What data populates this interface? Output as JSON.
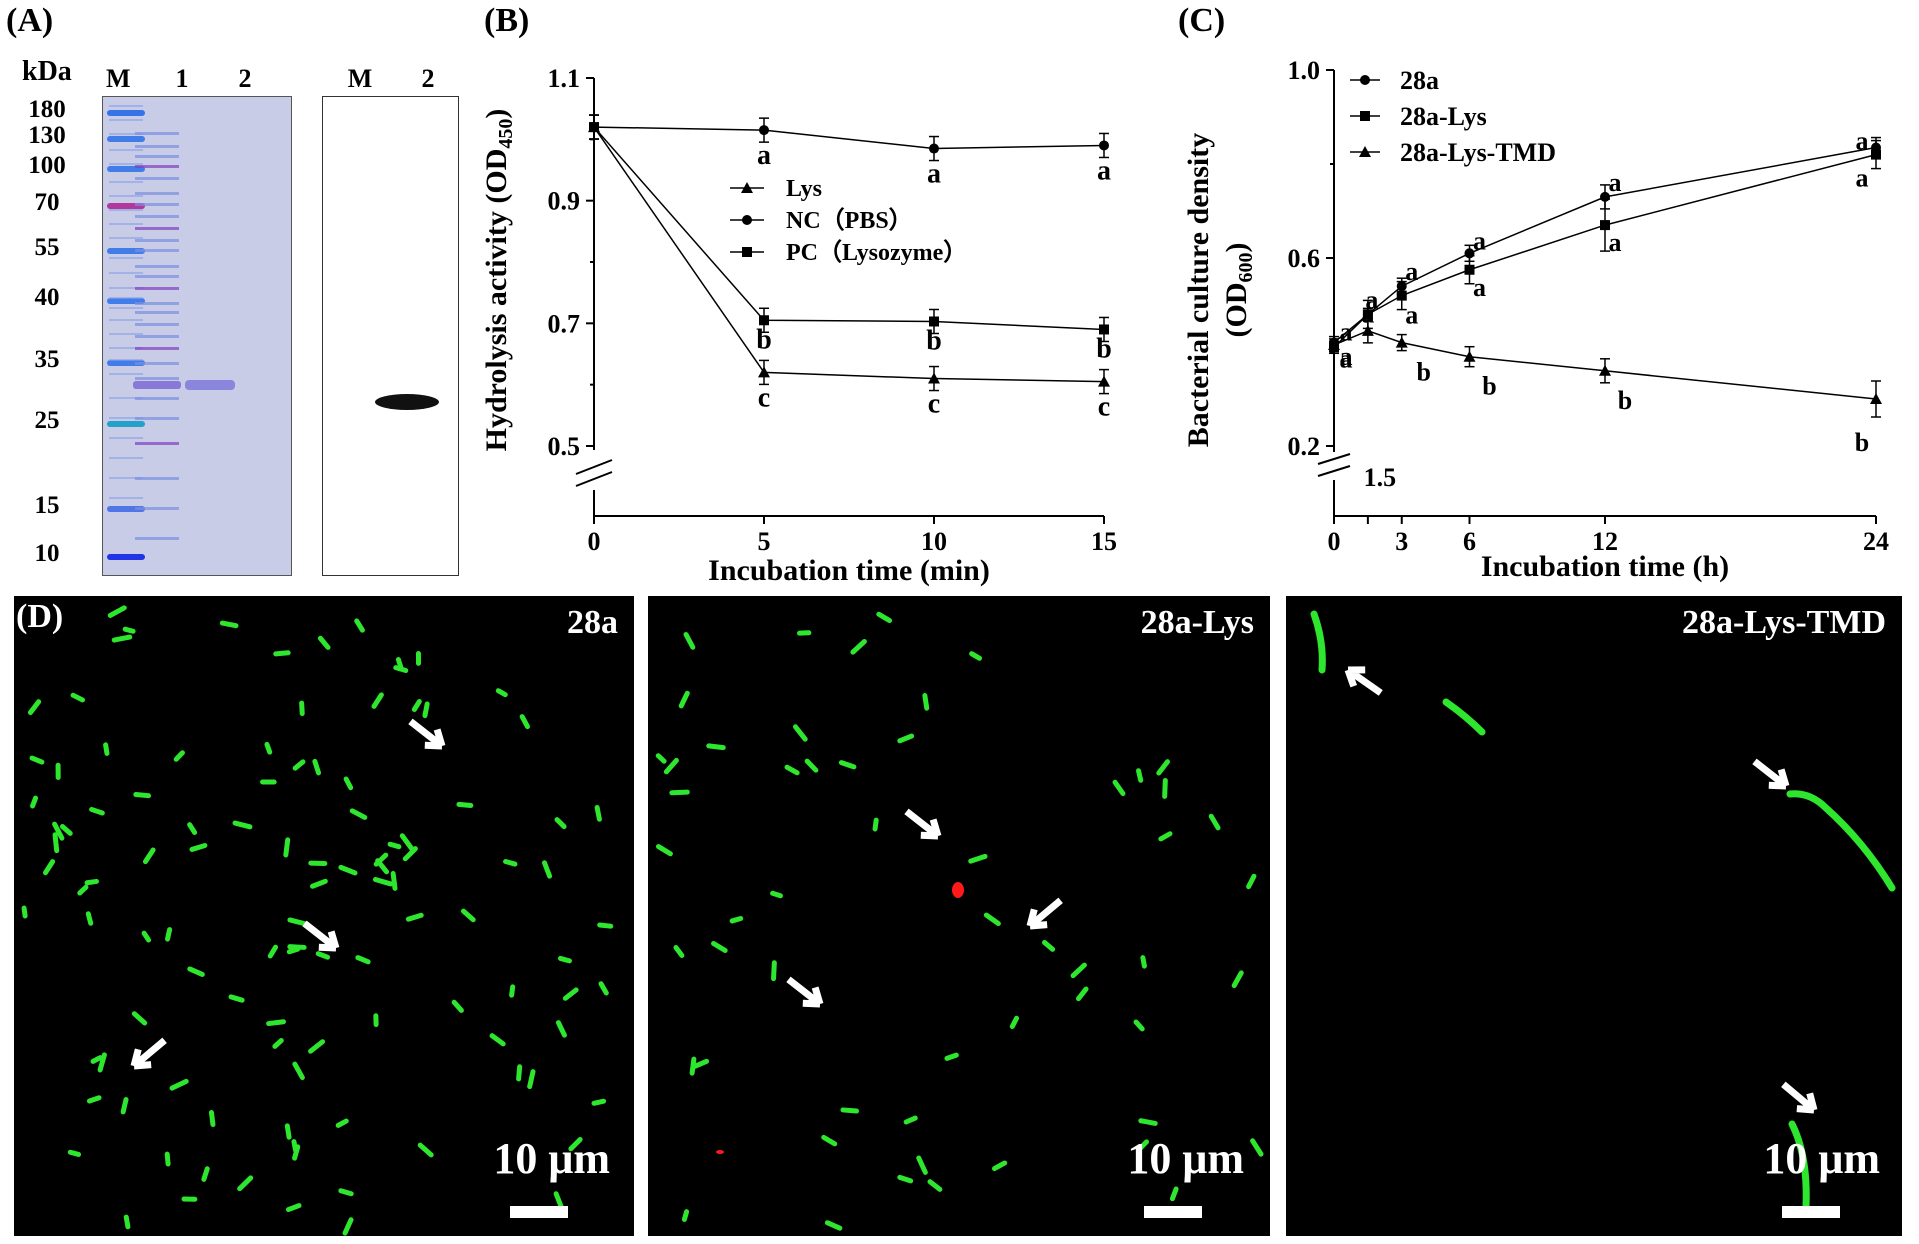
{
  "panel_A": {
    "letter": "(A)",
    "unit_label": "kDa",
    "marker_values": [
      "180",
      "130",
      "100",
      "70",
      "55",
      "40",
      "35",
      "25",
      "15",
      "10"
    ],
    "gel_lanes": [
      "M",
      "1",
      "2"
    ],
    "blot_lanes": [
      "M",
      "2"
    ]
  },
  "panel_B": {
    "letter": "(B)",
    "chart_data": {
      "type": "line",
      "xlabel": "Incubation time (min)",
      "ylabel": "Hydrolysis activity (OD450)",
      "x": [
        0,
        5,
        10,
        15
      ],
      "xticks": [
        "0",
        "5",
        "10",
        "15"
      ],
      "yticks": [
        "0.5",
        "0.7",
        "0.9",
        "1.1"
      ],
      "ylim": [
        0.5,
        1.1
      ],
      "xlim": [
        0,
        15
      ],
      "legend_position": "center-right",
      "series": [
        {
          "name": "Lys",
          "marker": "triangle",
          "values": [
            1.02,
            0.62,
            0.61,
            0.605
          ],
          "letters": [
            "",
            "c",
            "c",
            "c"
          ]
        },
        {
          "name": "NC（PBS）",
          "marker": "circle",
          "values": [
            1.02,
            1.015,
            0.985,
            0.99
          ],
          "letters": [
            "",
            "a",
            "a",
            "a"
          ]
        },
        {
          "name": "PC（Lysozyme）",
          "marker": "square",
          "values": [
            1.02,
            0.705,
            0.703,
            0.69
          ],
          "letters": [
            "",
            "b",
            "b",
            "b"
          ]
        }
      ]
    }
  },
  "panel_C": {
    "letter": "(C)",
    "chart_data": {
      "type": "line",
      "xlabel": "Incubation time (h)",
      "ylabel_line1": "Bacterial culture density",
      "ylabel_line2": "(OD600)",
      "x": [
        0,
        1.5,
        3,
        6,
        12,
        24
      ],
      "xticks": [
        "0",
        "3",
        "6",
        "12",
        "24"
      ],
      "extra_tick": "1.5",
      "yticks": [
        "0.2",
        "0.6",
        "1.0"
      ],
      "ylim": [
        0.2,
        1.0
      ],
      "xlim": [
        0,
        24
      ],
      "legend_position": "top-left",
      "series": [
        {
          "name": "28a",
          "marker": "circle",
          "values": [
            0.42,
            0.48,
            0.54,
            0.61,
            0.73,
            0.835
          ],
          "letters": [
            "a",
            "a",
            "a",
            "a",
            "a",
            "a"
          ]
        },
        {
          "name": "28a-Lys",
          "marker": "square",
          "values": [
            0.41,
            0.48,
            0.52,
            0.575,
            0.67,
            0.82
          ],
          "letters": [
            "a",
            "a",
            "a",
            "a",
            "a",
            "a"
          ]
        },
        {
          "name": "28a-Lys-TMD",
          "marker": "triangle",
          "values": [
            0.415,
            0.445,
            0.42,
            0.39,
            0.36,
            0.3
          ],
          "letters": [
            "a",
            "",
            "b",
            "b",
            "b",
            "b"
          ]
        }
      ]
    }
  },
  "panel_D": {
    "letter": "(D)",
    "images": [
      {
        "label": "28a",
        "scale": "10 μm"
      },
      {
        "label": "28a-Lys",
        "scale": "10 μm"
      },
      {
        "label": "28a-Lys-TMD",
        "scale": "10 μm"
      }
    ]
  },
  "colors": {
    "gel_background": "#c8cce6",
    "micro_background": "#000000",
    "cell_green": "#2ee62e",
    "cell_red": "#ff1a1a"
  }
}
